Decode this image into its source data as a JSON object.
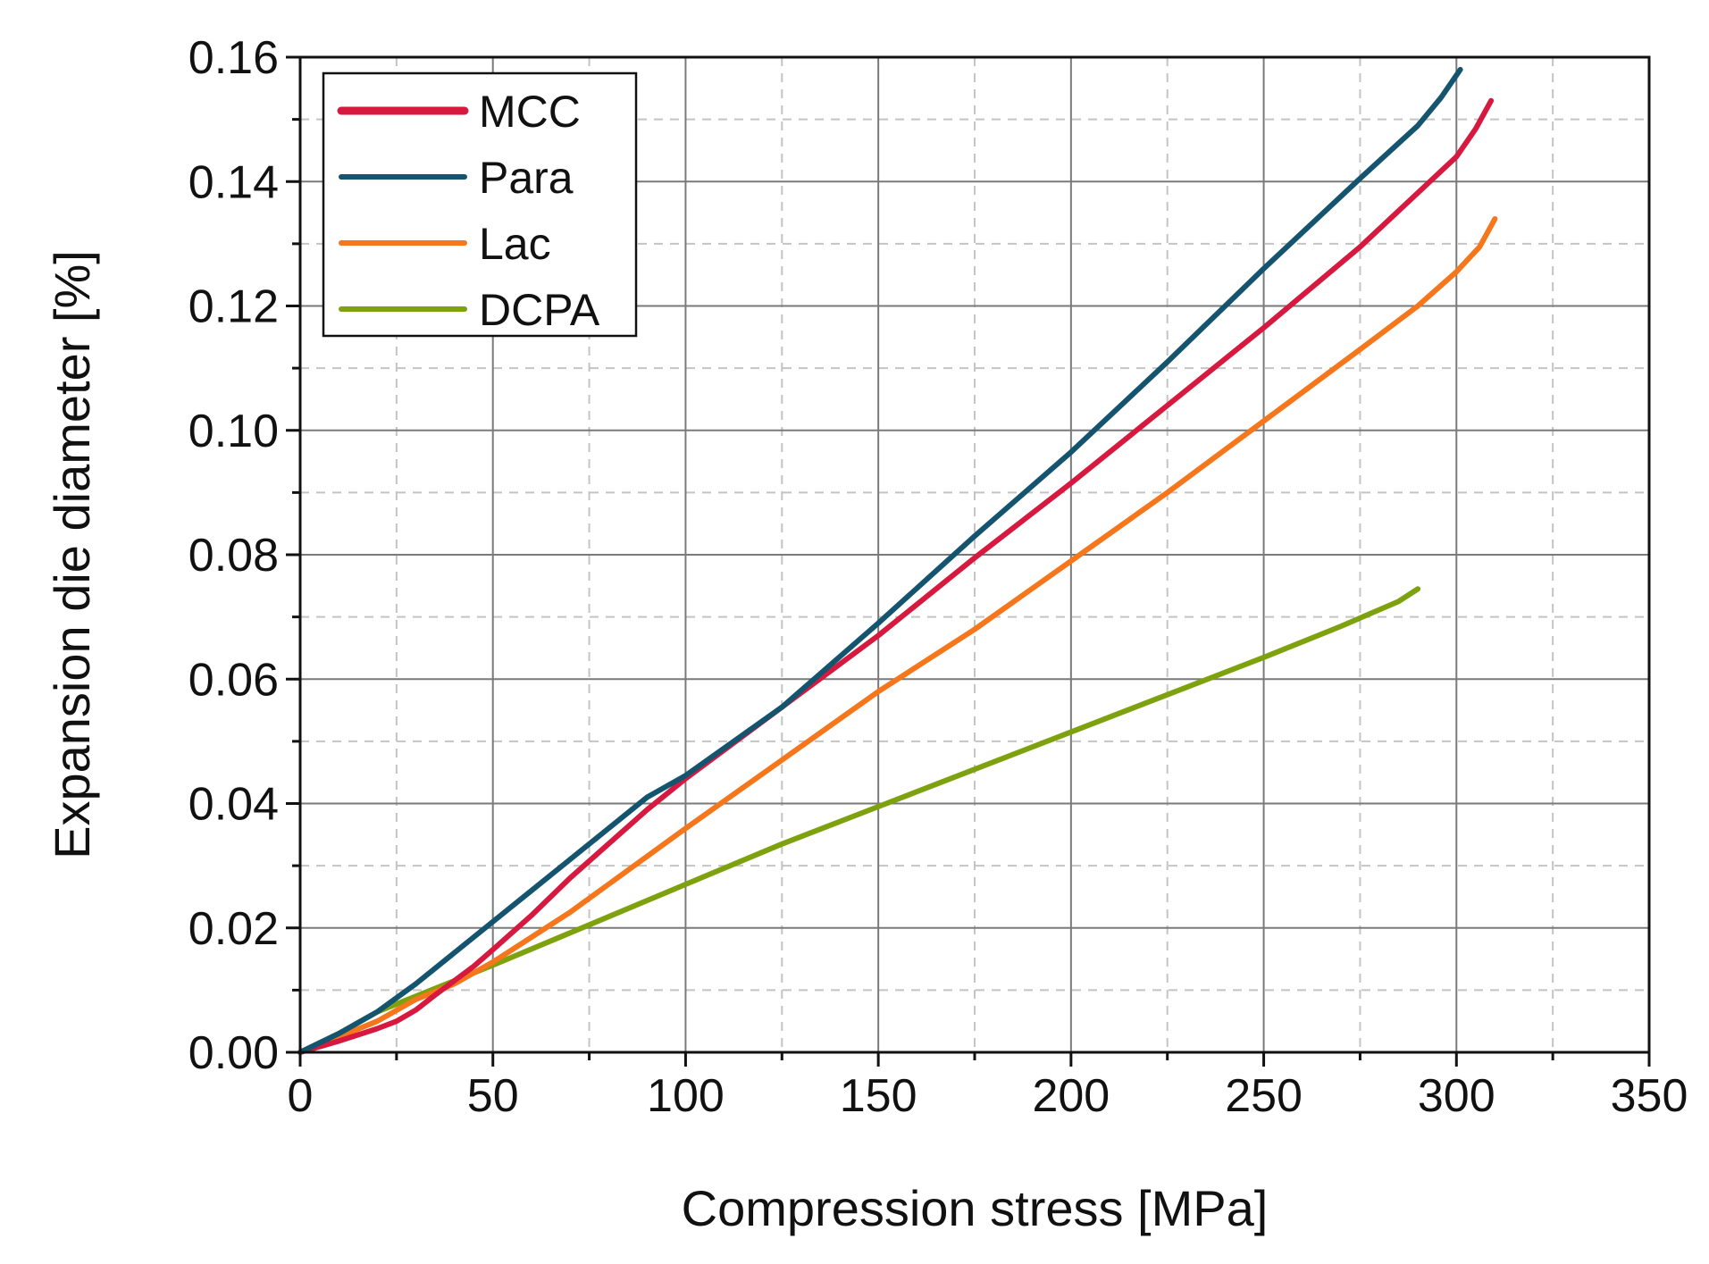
{
  "chart_data": {
    "type": "line",
    "title": "",
    "xlabel": "Compression stress [MPa]",
    "ylabel": "Expansion die diameter [%]",
    "xlim": [
      0,
      350
    ],
    "ylim": [
      0,
      0.16
    ],
    "x_major_ticks": [
      0,
      50,
      100,
      150,
      200,
      250,
      300,
      350
    ],
    "x_tick_labels": [
      "0",
      "50",
      "100",
      "150",
      "200",
      "250",
      "300",
      "350"
    ],
    "x_minor_ticks": [
      25,
      75,
      125,
      175,
      225,
      275,
      325
    ],
    "y_major_ticks": [
      0,
      0.02,
      0.04,
      0.06,
      0.08,
      0.1,
      0.12,
      0.14,
      0.16
    ],
    "y_tick_labels": [
      "0.00",
      "0.02",
      "0.04",
      "0.06",
      "0.08",
      "0.10",
      "0.12",
      "0.14",
      "0.16"
    ],
    "y_minor_ticks": [
      0.01,
      0.03,
      0.05,
      0.07,
      0.09,
      0.11,
      0.13,
      0.15
    ],
    "grid": true,
    "legend_position": "top-left",
    "series": [
      {
        "name": "MCC",
        "color": "#d7193f",
        "points": [
          [
            0,
            0
          ],
          [
            10,
            0.0018
          ],
          [
            20,
            0.0038
          ],
          [
            25,
            0.005
          ],
          [
            30,
            0.0068
          ],
          [
            35,
            0.0092
          ],
          [
            40,
            0.0115
          ],
          [
            45,
            0.0138
          ],
          [
            50,
            0.0165
          ],
          [
            60,
            0.022
          ],
          [
            70,
            0.028
          ],
          [
            80,
            0.0335
          ],
          [
            90,
            0.039
          ],
          [
            100,
            0.044
          ],
          [
            125,
            0.0555
          ],
          [
            150,
            0.067
          ],
          [
            175,
            0.0795
          ],
          [
            200,
            0.0915
          ],
          [
            225,
            0.104
          ],
          [
            250,
            0.1165
          ],
          [
            275,
            0.1295
          ],
          [
            300,
            0.144
          ],
          [
            305,
            0.1485
          ],
          [
            309,
            0.153
          ]
        ]
      },
      {
        "name": "Para",
        "color": "#14546f",
        "points": [
          [
            0,
            0
          ],
          [
            10,
            0.003
          ],
          [
            20,
            0.0065
          ],
          [
            30,
            0.011
          ],
          [
            40,
            0.016
          ],
          [
            50,
            0.021
          ],
          [
            60,
            0.026
          ],
          [
            70,
            0.031
          ],
          [
            80,
            0.036
          ],
          [
            90,
            0.041
          ],
          [
            100,
            0.0445
          ],
          [
            125,
            0.0555
          ],
          [
            150,
            0.069
          ],
          [
            175,
            0.083
          ],
          [
            200,
            0.0965
          ],
          [
            225,
            0.111
          ],
          [
            250,
            0.126
          ],
          [
            275,
            0.1405
          ],
          [
            290,
            0.149
          ],
          [
            296,
            0.1535
          ],
          [
            301,
            0.158
          ]
        ]
      },
      {
        "name": "Lac",
        "color": "#f6761b",
        "points": [
          [
            0,
            0
          ],
          [
            10,
            0.0025
          ],
          [
            20,
            0.005
          ],
          [
            30,
            0.0085
          ],
          [
            40,
            0.011
          ],
          [
            50,
            0.0145
          ],
          [
            60,
            0.0185
          ],
          [
            70,
            0.0225
          ],
          [
            80,
            0.027
          ],
          [
            90,
            0.0315
          ],
          [
            100,
            0.036
          ],
          [
            125,
            0.047
          ],
          [
            150,
            0.058
          ],
          [
            175,
            0.068
          ],
          [
            200,
            0.079
          ],
          [
            225,
            0.09
          ],
          [
            250,
            0.1015
          ],
          [
            275,
            0.113
          ],
          [
            290,
            0.12
          ],
          [
            300,
            0.1255
          ],
          [
            306,
            0.1295
          ],
          [
            310,
            0.134
          ]
        ]
      },
      {
        "name": "DCPA",
        "color": "#7ea20e",
        "points": [
          [
            0,
            0
          ],
          [
            10,
            0.003
          ],
          [
            20,
            0.0065
          ],
          [
            30,
            0.009
          ],
          [
            40,
            0.0115
          ],
          [
            50,
            0.014
          ],
          [
            75,
            0.0205
          ],
          [
            100,
            0.027
          ],
          [
            125,
            0.0335
          ],
          [
            150,
            0.0395
          ],
          [
            175,
            0.0455
          ],
          [
            200,
            0.0515
          ],
          [
            225,
            0.0575
          ],
          [
            250,
            0.0635
          ],
          [
            270,
            0.0685
          ],
          [
            285,
            0.0725
          ],
          [
            290,
            0.0745
          ]
        ]
      }
    ]
  }
}
